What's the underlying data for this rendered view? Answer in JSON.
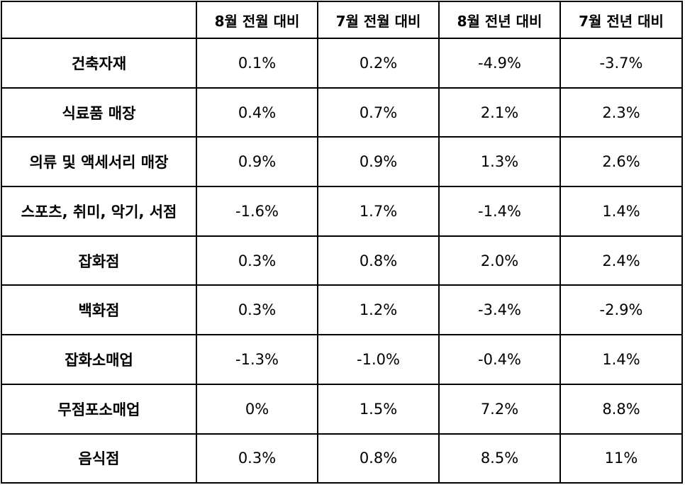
{
  "table": {
    "headers": [
      "",
      "8월 전월 대비",
      "7월 전월 대비",
      "8월 전년 대비",
      "7월 전년 대비"
    ],
    "rows": [
      {
        "label": "건축자재",
        "values": [
          "0.1%",
          "0.2%",
          "-4.9%",
          "-3.7%"
        ]
      },
      {
        "label": "식료품 매장",
        "values": [
          "0.4%",
          "0.7%",
          "2.1%",
          "2.3%"
        ]
      },
      {
        "label": "의류 및 액세서리 매장",
        "values": [
          "0.9%",
          "0.9%",
          "1.3%",
          "2.6%"
        ]
      },
      {
        "label": "스포츠, 취미, 악기, 서점",
        "values": [
          "-1.6%",
          "1.7%",
          "-1.4%",
          "1.4%"
        ]
      },
      {
        "label": "잡화점",
        "values": [
          "0.3%",
          "0.8%",
          "2.0%",
          "2.4%"
        ]
      },
      {
        "label": "백화점",
        "values": [
          "0.3%",
          "1.2%",
          "-3.4%",
          "-2.9%"
        ]
      },
      {
        "label": "잡화소매업",
        "values": [
          "-1.3%",
          "-1.0%",
          "-0.4%",
          "1.4%"
        ]
      },
      {
        "label": "무점포소매업",
        "values": [
          "0%",
          "1.5%",
          "7.2%",
          "8.8%"
        ]
      },
      {
        "label": "음식점",
        "values": [
          "0.3%",
          "0.8%",
          "8.5%",
          "11%"
        ]
      }
    ]
  },
  "colors": {
    "border": "#000000",
    "text": "#000000",
    "background": "#ffffff"
  }
}
